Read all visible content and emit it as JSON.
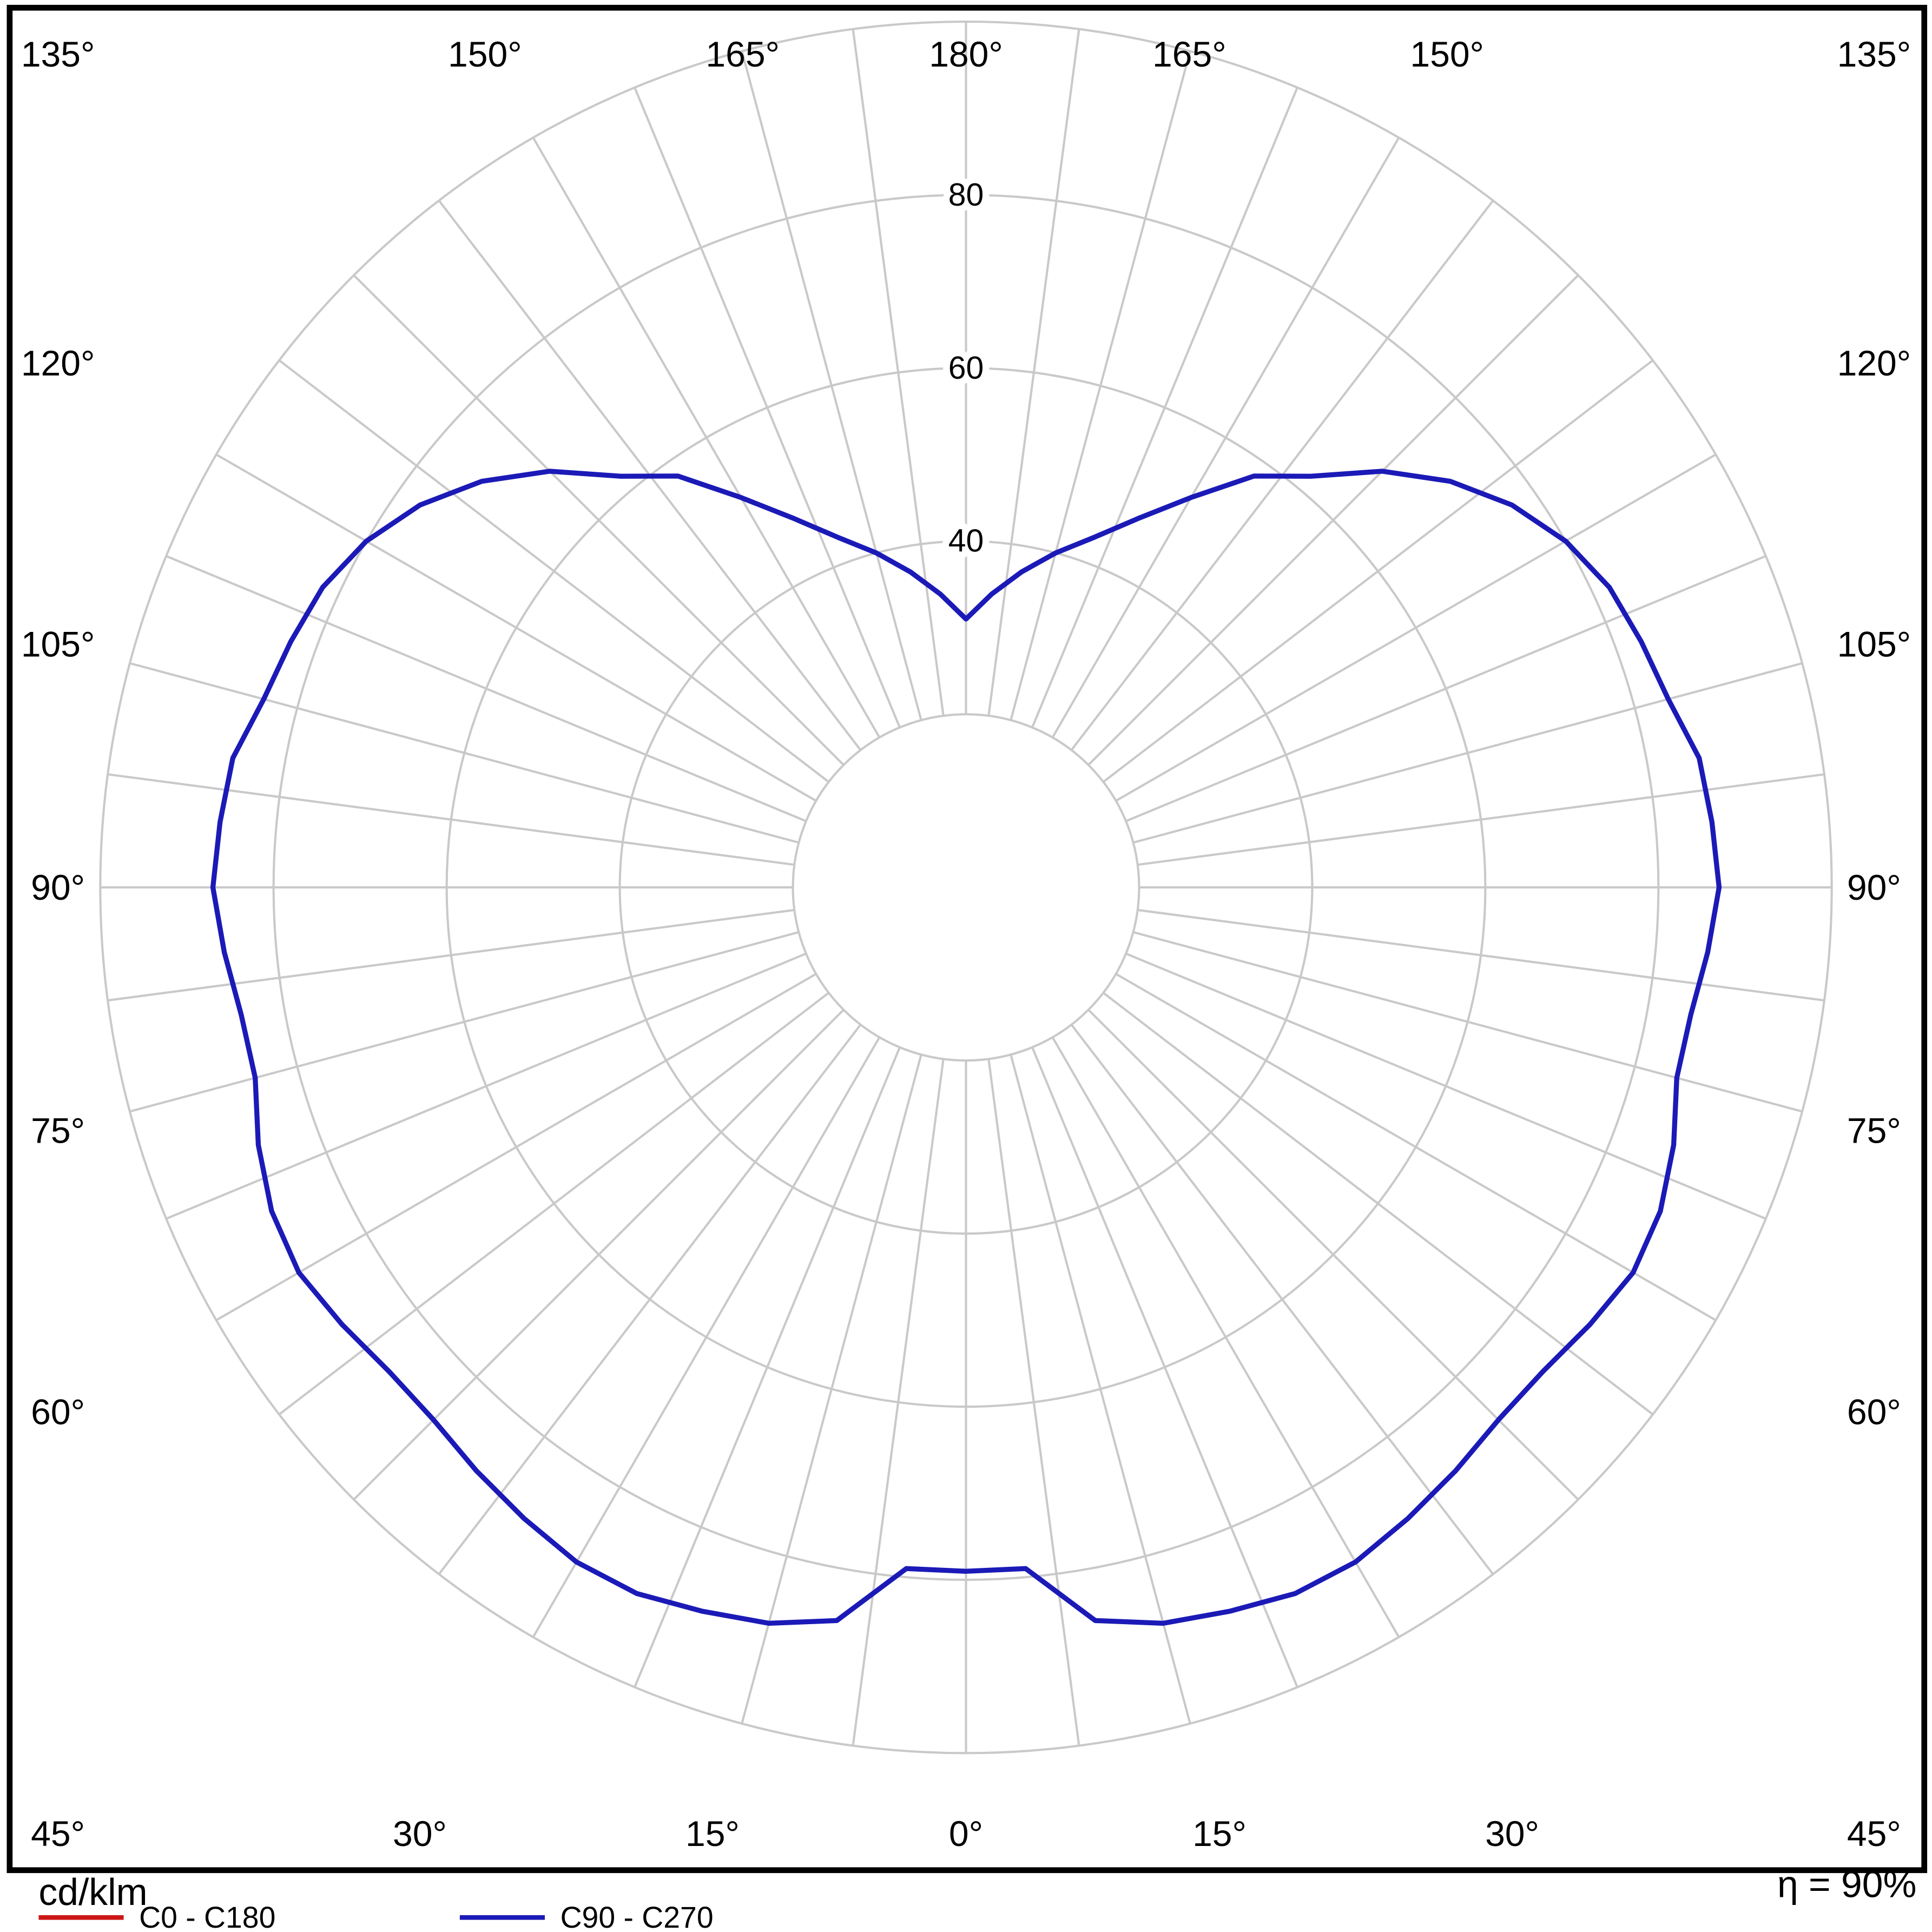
{
  "chart_data": {
    "type": "polar",
    "description": "Luminous intensity distribution polar diagram",
    "units_label": "cd/klm",
    "efficiency_label": "η = 90%",
    "radial_axis": {
      "rings": [
        20,
        40,
        60,
        80,
        100
      ],
      "tick_labels": [
        "40",
        "60",
        "80"
      ],
      "max": 100
    },
    "angular_axis": {
      "labels": [
        "0°",
        "15°",
        "30°",
        "45°",
        "60°",
        "75°",
        "90°",
        "105°",
        "120°",
        "135°",
        "150°",
        "165°",
        "180°"
      ],
      "grid_step_deg": 7.5
    },
    "legend": [
      {
        "label": "C0 - C180",
        "color": "#cc1616"
      },
      {
        "label": "C90 - C270",
        "color": "#1b1ab7"
      }
    ],
    "series": [
      {
        "name": "C0 - C180",
        "color": "#cc1616",
        "gamma_deg": [],
        "values_cd_per_klm": []
      },
      {
        "name": "C90 - C270",
        "color": "#1b1ab7",
        "gamma_deg": [
          0,
          5,
          10,
          15,
          20,
          25,
          30,
          35,
          40,
          45,
          50,
          55,
          60,
          65,
          70,
          75,
          80,
          85,
          90,
          95,
          100,
          105,
          110,
          115,
          120,
          125,
          130,
          135,
          140,
          145,
          150,
          155,
          160,
          165,
          170,
          175,
          180
        ],
        "values_cd_per_klm": [
          79,
          79,
          86,
          88,
          89,
          90,
          90,
          89,
          88,
          87,
          87,
          88,
          89,
          88.5,
          87,
          85,
          85,
          86,
          87,
          86.5,
          86,
          84,
          83,
          82,
          80,
          77,
          73,
          68,
          62,
          58,
          52,
          47,
          43,
          40,
          37,
          34,
          31
        ]
      }
    ]
  }
}
